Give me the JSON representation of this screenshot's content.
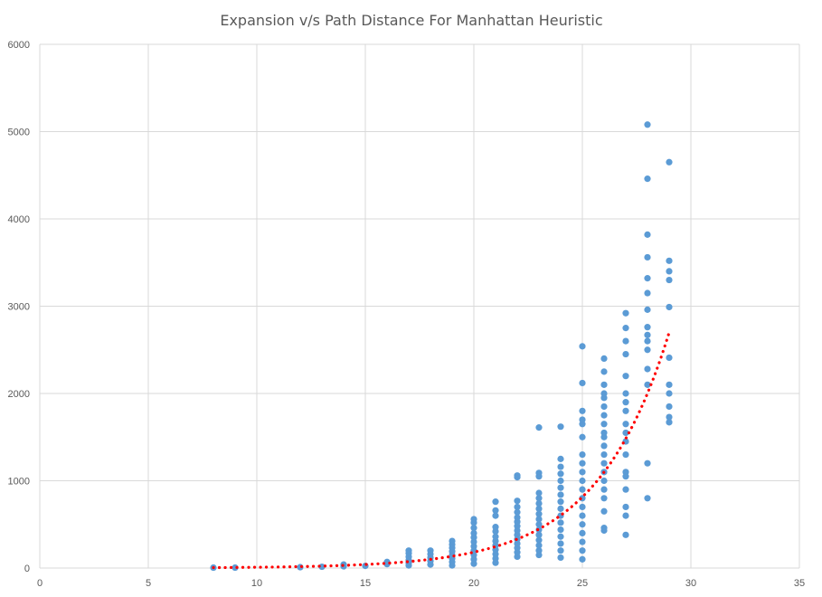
{
  "chart_data": {
    "type": "scatter",
    "title": "Expansion v/s Path Distance For Manhattan Heuristic",
    "xlabel": "",
    "ylabel": "",
    "xlim": [
      0,
      35
    ],
    "ylim": [
      0,
      6000
    ],
    "xticks": [
      0,
      5,
      10,
      15,
      20,
      25,
      30,
      35
    ],
    "yticks": [
      0,
      1000,
      2000,
      3000,
      4000,
      5000,
      6000
    ],
    "grid": true,
    "legend": "none",
    "colors": {
      "points": "#5b9bd5",
      "trendline": "#ff0000",
      "grid": "#d9d9d9",
      "text": "#595959"
    },
    "series": [
      {
        "kind": "points",
        "points": [
          [
            8,
            5
          ],
          [
            9,
            5
          ],
          [
            12,
            10
          ],
          [
            13,
            15
          ],
          [
            14,
            20
          ],
          [
            14,
            40
          ],
          [
            15,
            25
          ],
          [
            16,
            45
          ],
          [
            16,
            70
          ],
          [
            17,
            30
          ],
          [
            17,
            60
          ],
          [
            17,
            90
          ],
          [
            17,
            130
          ],
          [
            17,
            170
          ],
          [
            17,
            200
          ],
          [
            18,
            40
          ],
          [
            18,
            80
          ],
          [
            18,
            120
          ],
          [
            18,
            160
          ],
          [
            18,
            200
          ],
          [
            19,
            30
          ],
          [
            19,
            70
          ],
          [
            19,
            110
          ],
          [
            19,
            150
          ],
          [
            19,
            190
          ],
          [
            19,
            230
          ],
          [
            19,
            270
          ],
          [
            19,
            310
          ],
          [
            20,
            50
          ],
          [
            20,
            100
          ],
          [
            20,
            150
          ],
          [
            20,
            200
          ],
          [
            20,
            250
          ],
          [
            20,
            300
          ],
          [
            20,
            350
          ],
          [
            20,
            400
          ],
          [
            20,
            460
          ],
          [
            20,
            520
          ],
          [
            20,
            560
          ],
          [
            21,
            60
          ],
          [
            21,
            110
          ],
          [
            21,
            160
          ],
          [
            21,
            210
          ],
          [
            21,
            260
          ],
          [
            21,
            310
          ],
          [
            21,
            360
          ],
          [
            21,
            420
          ],
          [
            21,
            470
          ],
          [
            21,
            600
          ],
          [
            21,
            660
          ],
          [
            21,
            760
          ],
          [
            22,
            130
          ],
          [
            22,
            180
          ],
          [
            22,
            230
          ],
          [
            22,
            280
          ],
          [
            22,
            330
          ],
          [
            22,
            380
          ],
          [
            22,
            430
          ],
          [
            22,
            480
          ],
          [
            22,
            530
          ],
          [
            22,
            580
          ],
          [
            22,
            640
          ],
          [
            22,
            700
          ],
          [
            22,
            770
          ],
          [
            22,
            1040
          ],
          [
            22,
            1060
          ],
          [
            23,
            150
          ],
          [
            23,
            200
          ],
          [
            23,
            260
          ],
          [
            23,
            320
          ],
          [
            23,
            380
          ],
          [
            23,
            440
          ],
          [
            23,
            500
          ],
          [
            23,
            560
          ],
          [
            23,
            620
          ],
          [
            23,
            680
          ],
          [
            23,
            740
          ],
          [
            23,
            800
          ],
          [
            23,
            860
          ],
          [
            23,
            1050
          ],
          [
            23,
            1090
          ],
          [
            23,
            1610
          ],
          [
            24,
            120
          ],
          [
            24,
            200
          ],
          [
            24,
            280
          ],
          [
            24,
            360
          ],
          [
            24,
            440
          ],
          [
            24,
            520
          ],
          [
            24,
            600
          ],
          [
            24,
            680
          ],
          [
            24,
            760
          ],
          [
            24,
            840
          ],
          [
            24,
            920
          ],
          [
            24,
            1000
          ],
          [
            24,
            1080
          ],
          [
            24,
            1160
          ],
          [
            24,
            1250
          ],
          [
            24,
            1620
          ],
          [
            25,
            100
          ],
          [
            25,
            200
          ],
          [
            25,
            300
          ],
          [
            25,
            400
          ],
          [
            25,
            500
          ],
          [
            25,
            600
          ],
          [
            25,
            700
          ],
          [
            25,
            800
          ],
          [
            25,
            900
          ],
          [
            25,
            1000
          ],
          [
            25,
            1100
          ],
          [
            25,
            1200
          ],
          [
            25,
            1300
          ],
          [
            25,
            1500
          ],
          [
            25,
            1650
          ],
          [
            25,
            1700
          ],
          [
            25,
            1800
          ],
          [
            25,
            2120
          ],
          [
            25,
            2540
          ],
          [
            26,
            430
          ],
          [
            26,
            460
          ],
          [
            26,
            650
          ],
          [
            26,
            800
          ],
          [
            26,
            900
          ],
          [
            26,
            1000
          ],
          [
            26,
            1100
          ],
          [
            26,
            1200
          ],
          [
            26,
            1300
          ],
          [
            26,
            1400
          ],
          [
            26,
            1500
          ],
          [
            26,
            1550
          ],
          [
            26,
            1650
          ],
          [
            26,
            1750
          ],
          [
            26,
            1850
          ],
          [
            26,
            1950
          ],
          [
            26,
            2000
          ],
          [
            26,
            2100
          ],
          [
            26,
            2250
          ],
          [
            26,
            2400
          ],
          [
            27,
            380
          ],
          [
            27,
            600
          ],
          [
            27,
            700
          ],
          [
            27,
            900
          ],
          [
            27,
            1050
          ],
          [
            27,
            1100
          ],
          [
            27,
            1300
          ],
          [
            27,
            1450
          ],
          [
            27,
            1550
          ],
          [
            27,
            1650
          ],
          [
            27,
            1800
          ],
          [
            27,
            1900
          ],
          [
            27,
            2000
          ],
          [
            27,
            2200
          ],
          [
            27,
            2450
          ],
          [
            27,
            2600
          ],
          [
            27,
            2750
          ],
          [
            27,
            2920
          ],
          [
            28,
            800
          ],
          [
            28,
            1200
          ],
          [
            28,
            2100
          ],
          [
            28,
            2280
          ],
          [
            28,
            2500
          ],
          [
            28,
            2600
          ],
          [
            28,
            2670
          ],
          [
            28,
            2760
          ],
          [
            28,
            2960
          ],
          [
            28,
            3150
          ],
          [
            28,
            3320
          ],
          [
            28,
            3560
          ],
          [
            28,
            3820
          ],
          [
            28,
            4460
          ],
          [
            28,
            5080
          ],
          [
            29,
            1670
          ],
          [
            29,
            1730
          ],
          [
            29,
            1850
          ],
          [
            29,
            2000
          ],
          [
            29,
            2100
          ],
          [
            29,
            2410
          ],
          [
            29,
            2990
          ],
          [
            29,
            3300
          ],
          [
            29,
            3400
          ],
          [
            29,
            3520
          ],
          [
            29,
            4650
          ]
        ]
      },
      {
        "kind": "exponential-trendline",
        "style": "dotted",
        "x_range": [
          8,
          29
        ],
        "y_at_x_min": 5,
        "y_at_x_max": 2700
      }
    ]
  }
}
